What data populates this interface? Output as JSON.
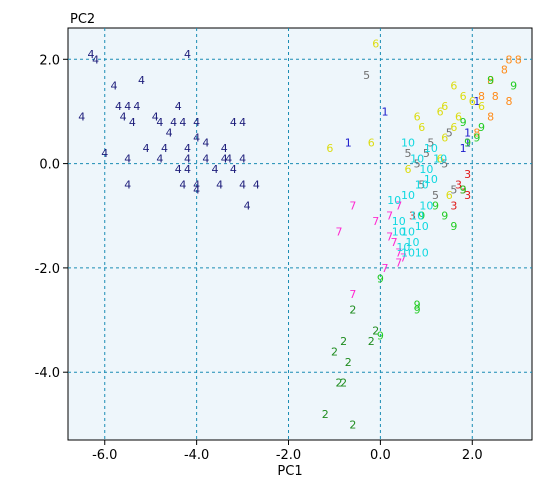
{
  "chart_data": {
    "type": "scatter",
    "title": "",
    "xlabel": "PC1",
    "ylabel": "PC2",
    "xlim": [
      -6.8,
      3.3
    ],
    "ylim": [
      -5.3,
      2.6
    ],
    "grid": true,
    "grid_style": "dashed",
    "xticks": [
      -6.0,
      -4.0,
      -2.0,
      0.0,
      2.0
    ],
    "yticks": [
      -4.0,
      -2.0,
      0.0,
      2.0
    ],
    "xtick_labels": [
      "-6.0",
      "-4.0",
      "-2.0",
      "0.0",
      "2.0"
    ],
    "ytick_labels": [
      "-4.0",
      "-2.0",
      "0.0",
      "2.0"
    ],
    "colors": {
      "1": "#1a1acc",
      "2": "#1e8c1e",
      "3": "#e01818",
      "4": "#1c1c7a",
      "5": "#707070",
      "6": "#dcdc10",
      "7": "#ff2ad0",
      "8": "#ff8c1a",
      "9": "#22cc22",
      "10": "#10d8e0"
    },
    "series": [
      {
        "label": "1",
        "points": [
          [
            0.1,
            1.0
          ],
          [
            -0.7,
            0.4
          ],
          [
            2.1,
            1.2
          ],
          [
            1.9,
            0.6
          ],
          [
            1.9,
            0.4
          ],
          [
            1.8,
            0.3
          ]
        ]
      },
      {
        "label": "2",
        "points": [
          [
            -0.6,
            -2.8
          ],
          [
            -0.8,
            -3.4
          ],
          [
            -0.1,
            -3.2
          ],
          [
            -1.0,
            -3.6
          ],
          [
            -0.7,
            -3.8
          ],
          [
            -0.9,
            -4.2
          ],
          [
            -0.8,
            -4.2
          ],
          [
            -1.2,
            -4.8
          ],
          [
            -0.6,
            -5.0
          ],
          [
            -0.2,
            -3.4
          ]
        ]
      },
      {
        "label": "3",
        "points": [
          [
            1.9,
            -0.2
          ],
          [
            1.7,
            -0.4
          ],
          [
            1.9,
            -0.6
          ],
          [
            1.6,
            -0.8
          ],
          [
            0.7,
            -1.0
          ],
          [
            1.8,
            -0.5
          ]
        ]
      },
      {
        "label": "4",
        "points": [
          [
            -6.3,
            2.1
          ],
          [
            -6.2,
            2.0
          ],
          [
            -4.2,
            2.1
          ],
          [
            -6.5,
            0.9
          ],
          [
            -5.8,
            1.5
          ],
          [
            -5.2,
            1.6
          ],
          [
            -5.7,
            1.1
          ],
          [
            -5.5,
            1.1
          ],
          [
            -5.3,
            1.1
          ],
          [
            -5.6,
            0.9
          ],
          [
            -5.4,
            0.8
          ],
          [
            -4.8,
            0.8
          ],
          [
            -4.9,
            0.9
          ],
          [
            -4.5,
            0.8
          ],
          [
            -4.4,
            1.1
          ],
          [
            -4.3,
            0.8
          ],
          [
            -4.0,
            0.8
          ],
          [
            -4.6,
            0.6
          ],
          [
            -3.2,
            0.8
          ],
          [
            -3.0,
            0.8
          ],
          [
            -4.0,
            0.5
          ],
          [
            -3.8,
            0.4
          ],
          [
            -4.2,
            0.3
          ],
          [
            -3.4,
            0.3
          ],
          [
            -6.0,
            0.2
          ],
          [
            -5.1,
            0.3
          ],
          [
            -4.7,
            0.3
          ],
          [
            -5.5,
            0.1
          ],
          [
            -4.8,
            0.1
          ],
          [
            -4.2,
            0.1
          ],
          [
            -3.8,
            0.1
          ],
          [
            -3.4,
            0.1
          ],
          [
            -3.3,
            0.1
          ],
          [
            -3.0,
            0.1
          ],
          [
            -4.4,
            -0.1
          ],
          [
            -4.2,
            -0.1
          ],
          [
            -3.6,
            -0.1
          ],
          [
            -3.2,
            -0.1
          ],
          [
            -4.0,
            -0.4
          ],
          [
            -4.3,
            -0.4
          ],
          [
            -4.0,
            -0.5
          ],
          [
            -5.5,
            -0.4
          ],
          [
            -3.0,
            -0.4
          ],
          [
            -2.7,
            -0.4
          ],
          [
            -3.5,
            -0.4
          ],
          [
            -2.9,
            -0.8
          ]
        ]
      },
      {
        "label": "5",
        "points": [
          [
            -0.3,
            1.7
          ],
          [
            1.5,
            0.6
          ],
          [
            1.1,
            0.4
          ],
          [
            0.6,
            0.2
          ],
          [
            1.0,
            0.2
          ],
          [
            0.8,
            0.0
          ],
          [
            1.4,
            0.0
          ],
          [
            0.9,
            -0.4
          ],
          [
            1.2,
            -0.6
          ],
          [
            1.6,
            -0.5
          ]
        ]
      },
      {
        "label": "6",
        "points": [
          [
            -0.1,
            2.3
          ],
          [
            -1.1,
            0.3
          ],
          [
            -0.2,
            0.4
          ],
          [
            1.6,
            1.5
          ],
          [
            1.8,
            1.3
          ],
          [
            1.4,
            1.1
          ],
          [
            1.3,
            1.0
          ],
          [
            0.8,
            0.9
          ],
          [
            0.9,
            0.7
          ],
          [
            1.4,
            0.5
          ],
          [
            2.0,
            1.2
          ],
          [
            2.2,
            1.1
          ],
          [
            1.7,
            0.9
          ],
          [
            1.6,
            0.7
          ],
          [
            0.6,
            -0.1
          ],
          [
            1.3,
            0.1
          ],
          [
            1.5,
            -0.6
          ]
        ]
      },
      {
        "label": "7",
        "points": [
          [
            -0.6,
            -0.8
          ],
          [
            -0.9,
            -1.3
          ],
          [
            -0.1,
            -1.1
          ],
          [
            0.2,
            -1.4
          ],
          [
            0.3,
            -1.5
          ],
          [
            0.4,
            -1.7
          ],
          [
            0.1,
            -2.0
          ],
          [
            -0.6,
            -2.5
          ],
          [
            0.4,
            -1.9
          ],
          [
            0.5,
            -1.8
          ],
          [
            0.4,
            -0.8
          ],
          [
            0.2,
            -1.0
          ]
        ]
      },
      {
        "label": "8",
        "points": [
          [
            2.8,
            2.0
          ],
          [
            3.0,
            2.0
          ],
          [
            2.7,
            1.8
          ],
          [
            2.4,
            1.6
          ],
          [
            2.2,
            1.3
          ],
          [
            2.5,
            1.3
          ],
          [
            2.8,
            1.2
          ],
          [
            2.4,
            0.9
          ],
          [
            2.1,
            0.6
          ]
        ]
      },
      {
        "label": "9",
        "points": [
          [
            2.4,
            1.6
          ],
          [
            2.9,
            1.5
          ],
          [
            1.8,
            0.8
          ],
          [
            2.2,
            0.7
          ],
          [
            2.1,
            0.5
          ],
          [
            1.9,
            0.4
          ],
          [
            1.8,
            -0.5
          ],
          [
            1.2,
            -0.8
          ],
          [
            1.4,
            -1.0
          ],
          [
            1.6,
            -1.2
          ],
          [
            0.9,
            -1.0
          ],
          [
            0.0,
            -2.2
          ],
          [
            0.8,
            -2.7
          ],
          [
            0.8,
            -2.8
          ],
          [
            0.0,
            -3.3
          ]
        ]
      },
      {
        "label": "10",
        "points": [
          [
            0.6,
            0.4
          ],
          [
            1.1,
            0.3
          ],
          [
            1.3,
            0.1
          ],
          [
            0.8,
            0.1
          ],
          [
            1.0,
            -0.1
          ],
          [
            1.1,
            -0.3
          ],
          [
            0.9,
            -0.4
          ],
          [
            0.6,
            -0.6
          ],
          [
            0.3,
            -0.7
          ],
          [
            1.0,
            -0.8
          ],
          [
            0.8,
            -1.0
          ],
          [
            0.4,
            -1.1
          ],
          [
            0.6,
            -1.3
          ],
          [
            0.9,
            -1.2
          ],
          [
            0.7,
            -1.5
          ],
          [
            0.5,
            -1.6
          ],
          [
            0.9,
            -1.7
          ],
          [
            0.6,
            -1.7
          ],
          [
            0.4,
            -1.3
          ]
        ]
      }
    ]
  }
}
